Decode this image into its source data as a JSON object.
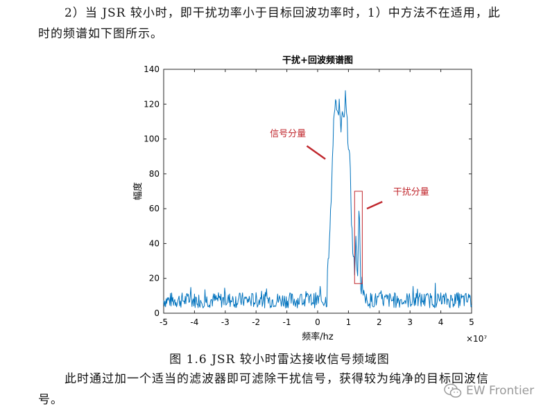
{
  "paragraphs": {
    "top_line1": "2）当 JSR 较小时，即干扰功率小于目标回波功率时，1）中方法不在适用，此",
    "top_line2": "时的频谱如下图所示。",
    "bottom_line1": "此时通过加一个适当的滤波器即可滤除干扰信号，获得较为纯净的目标回波信",
    "bottom_line2": "号。"
  },
  "figure": {
    "caption": "图 1.6  JSR 较小时雷达接收信号频域图"
  },
  "watermark": {
    "text": "EW Frontier",
    "icon": "wechat-icon"
  },
  "chart_data": {
    "type": "line",
    "title": "干扰+回波频谱图",
    "xlabel": "频率/hz",
    "ylabel": "幅度",
    "x_exponent": "×10⁷",
    "xlim": [
      -5,
      5
    ],
    "ylim": [
      0,
      140
    ],
    "x_ticks": [
      -5,
      -4,
      -3,
      -2,
      -1,
      0,
      1,
      2,
      3,
      4,
      5
    ],
    "y_ticks": [
      0,
      20,
      40,
      60,
      80,
      100,
      120,
      140
    ],
    "line_color": "#0072BD",
    "grid": false,
    "annotations": [
      {
        "text": "信号分量",
        "color": "#C0272D",
        "label_at": [
          -1.55,
          101.5
        ],
        "arrow_from": [
          -0.35,
          96
        ],
        "arrow_to": [
          0.25,
          88.5
        ]
      },
      {
        "text": "干扰分量",
        "color": "#C0272D",
        "label_at": [
          2.45,
          68
        ],
        "arrow_from": [
          1.6,
          60
        ],
        "arrow_to": [
          2.1,
          64
        ]
      }
    ],
    "highlight_box": {
      "color": "#C0272D",
      "x": [
        1.2,
        1.45
      ],
      "y": [
        17,
        70
      ]
    },
    "series": [
      {
        "noise_level": 7.5,
        "points": [
          [
            0.3,
            22
          ],
          [
            0.4,
            45
          ],
          [
            0.45,
            70
          ],
          [
            0.5,
            100
          ],
          [
            0.55,
            118
          ],
          [
            0.6,
            126
          ],
          [
            0.65,
            112
          ],
          [
            0.7,
            120
          ],
          [
            0.75,
            103
          ],
          [
            0.8,
            115
          ],
          [
            0.85,
            107
          ],
          [
            0.9,
            124
          ],
          [
            0.95,
            110
          ],
          [
            1.0,
            98
          ],
          [
            1.05,
            84
          ],
          [
            1.1,
            55
          ],
          [
            1.15,
            32
          ],
          [
            1.2,
            26
          ],
          [
            1.25,
            45
          ],
          [
            1.3,
            18
          ],
          [
            1.35,
            65
          ],
          [
            1.4,
            12
          ],
          [
            1.45,
            20
          ],
          [
            1.5,
            10
          ]
        ]
      }
    ]
  }
}
